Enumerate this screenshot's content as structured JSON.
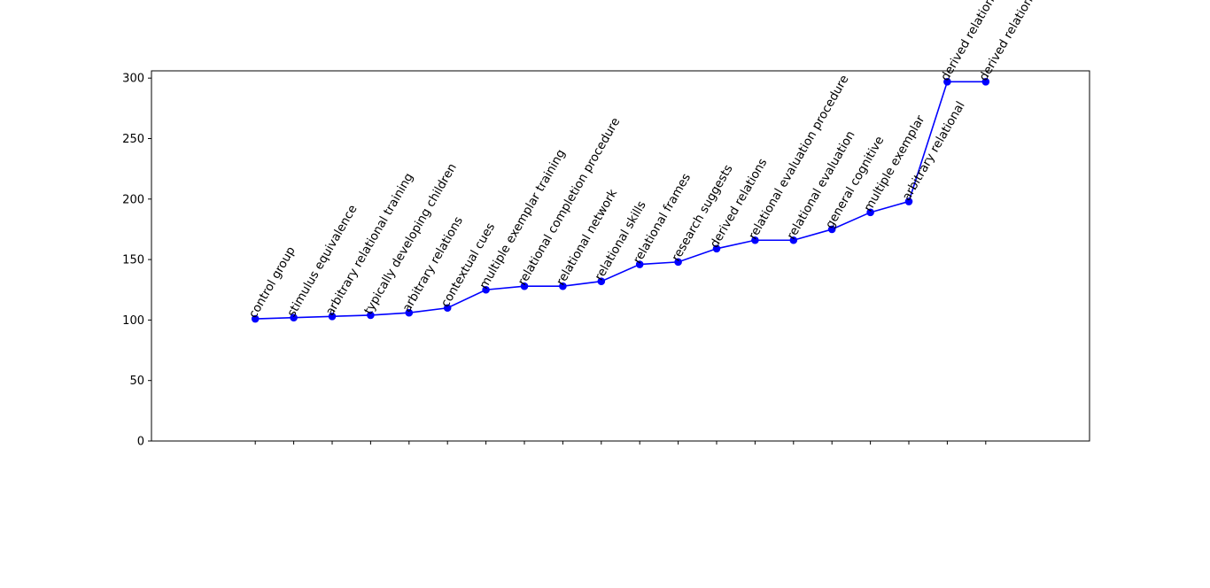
{
  "chart_data": {
    "type": "line",
    "title": "",
    "xlabel": "",
    "ylabel": "",
    "ylim": [
      0,
      306
    ],
    "xlim": [
      -2.7,
      21.7
    ],
    "yticks": [
      0,
      50,
      100,
      150,
      200,
      250,
      300
    ],
    "grid": false,
    "series": [
      {
        "color": "#0000ff",
        "marker": "circle",
        "points": [
          {
            "label": "control group",
            "value": 101
          },
          {
            "label": "stimulus equivalence",
            "value": 102
          },
          {
            "label": "arbitrary relational training",
            "value": 103
          },
          {
            "label": "typically developing children",
            "value": 104
          },
          {
            "label": "arbitrary relations",
            "value": 106
          },
          {
            "label": "contextual cues",
            "value": 110
          },
          {
            "label": "multiple exemplar training",
            "value": 125
          },
          {
            "label": "relational completion procedure",
            "value": 128
          },
          {
            "label": "relational network",
            "value": 128
          },
          {
            "label": "relational skills",
            "value": 132
          },
          {
            "label": "relational frames",
            "value": 146
          },
          {
            "label": "research suggests",
            "value": 148
          },
          {
            "label": "derived relations",
            "value": 159
          },
          {
            "label": "relational evaluation procedure",
            "value": 166
          },
          {
            "label": "relational evaluation",
            "value": 166
          },
          {
            "label": "general cognitive",
            "value": 175
          },
          {
            "label": "multiple exemplar",
            "value": 189
          },
          {
            "label": "arbitrary relational",
            "value": 198
          },
          {
            "label": "derived relational responding",
            "value": 297
          },
          {
            "label": "derived relational",
            "value": 297
          }
        ]
      }
    ]
  }
}
